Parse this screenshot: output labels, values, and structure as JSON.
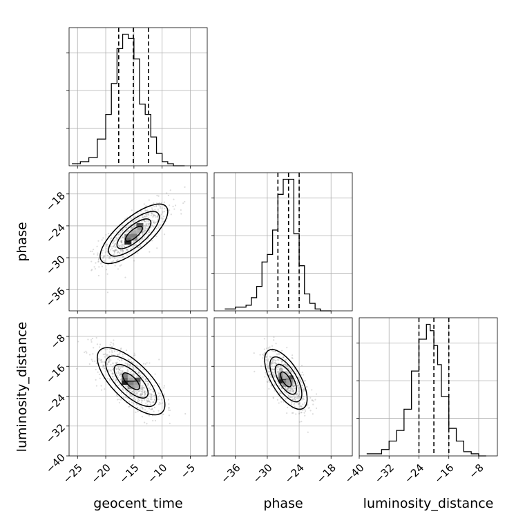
{
  "chart_data": {
    "type": "corner",
    "parameters": [
      "geocent_time",
      "phase",
      "luminosity_distance"
    ],
    "axis_labels": {
      "x": [
        "geocent_time",
        "phase",
        "luminosity_distance"
      ],
      "y": [
        "",
        "phase",
        "luminosity_distance"
      ]
    },
    "ranges": {
      "geocent_time": [
        -26.5,
        -2
      ],
      "phase": [
        -40,
        -14
      ],
      "luminosity_distance": [
        -40,
        -3
      ]
    },
    "ticks": {
      "geocent_time": [
        -25,
        -20,
        -15,
        -10,
        -5
      ],
      "phase": [
        -36,
        -30,
        -24,
        -18
      ],
      "luminosity_distance": [
        -40,
        -32,
        -24,
        -16,
        -8
      ]
    },
    "tick_labels": {
      "geocent_time": [
        "−25",
        "−20",
        "−15",
        "−10",
        "−5"
      ],
      "phase": [
        "−36",
        "−30",
        "−24",
        "−18"
      ],
      "luminosity_distance": [
        "−40",
        "−32",
        "−24",
        "−16",
        "−8"
      ]
    },
    "quantiles": {
      "geocent_time": [
        -17.7,
        -15.1,
        -12.4
      ],
      "phase": [
        -28.0,
        -26.0,
        -24.0
      ],
      "luminosity_distance": [
        -24.0,
        -20.0,
        -16.0
      ]
    },
    "histograms": {
      "geocent_time": {
        "edges": [
          -26,
          -24.5,
          -23,
          -21.5,
          -20,
          -19,
          -18,
          -17,
          -16,
          -15,
          -14,
          -13,
          -12,
          -11,
          -10,
          -9,
          -8,
          -7,
          -6
        ],
        "counts": [
          1,
          2,
          4,
          13,
          25,
          40,
          57,
          64,
          62,
          52,
          30,
          25,
          14,
          6,
          2,
          1,
          0,
          0
        ]
      },
      "phase": {
        "edges": [
          -38,
          -36,
          -34,
          -33,
          -32,
          -31,
          -30,
          -29,
          -28,
          -27,
          -26,
          -25,
          -24,
          -23,
          -22,
          -21,
          -20,
          -19,
          -18
        ],
        "counts": [
          1,
          2,
          3,
          7,
          13,
          26,
          30,
          43,
          62,
          70,
          70,
          41,
          24,
          9,
          4,
          1,
          0,
          0
        ]
      },
      "luminosity_distance": {
        "edges": [
          -38,
          -36,
          -34,
          -32,
          -30,
          -28,
          -26,
          -24,
          -22,
          -21,
          -20,
          -19,
          -18,
          -16,
          -14,
          -12,
          -10,
          -8,
          -6
        ],
        "counts": [
          1,
          1,
          3,
          7,
          12,
          22,
          40,
          55,
          62,
          59,
          52,
          43,
          28,
          13,
          7,
          2,
          1,
          0
        ]
      }
    },
    "pairs": [
      {
        "x": "geocent_time",
        "y": "phase",
        "center": [
          -15.0,
          -25.5
        ],
        "std": [
          3.0,
          2.8
        ],
        "correlation": 0.75,
        "contour_sigmas": [
          0.5,
          1.0,
          1.5,
          2.0
        ]
      },
      {
        "x": "geocent_time",
        "y": "luminosity_distance",
        "center": [
          -15.5,
          -20.0
        ],
        "std": [
          3.0,
          4.5
        ],
        "correlation": -0.7,
        "contour_sigmas": [
          0.5,
          1.0,
          1.5,
          2.0
        ]
      },
      {
        "x": "phase",
        "y": "luminosity_distance",
        "center": [
          -26.5,
          -19.5
        ],
        "std": [
          2.0,
          4.0
        ],
        "correlation": -0.65,
        "contour_sigmas": [
          0.5,
          1.0,
          1.5,
          2.0
        ]
      }
    ],
    "grid": true,
    "legend": "none"
  }
}
